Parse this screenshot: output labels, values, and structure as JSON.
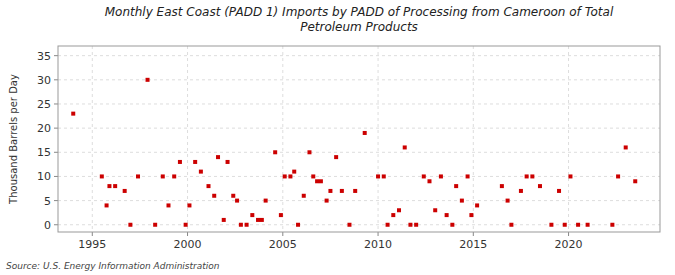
{
  "chart_data": {
    "type": "scatter",
    "title": "Monthly East Coast (PADD 1) Imports by PADD of Processing from Cameroon of Total\nPetroleum Products",
    "y_label": "Thousand Barrels per Day",
    "annotations": [
      "Source: U.S. Energy Information Administration"
    ],
    "color": "#cc0000",
    "marker": "square",
    "grid": true,
    "xlim": [
      1993.2,
      2024.8
    ],
    "ylim": [
      -1.5,
      37
    ],
    "xticks": [
      1995,
      2000,
      2005,
      2010,
      2015,
      2020
    ],
    "yticks": [
      0,
      5,
      10,
      15,
      20,
      25,
      30,
      35
    ],
    "x": [
      1994.0,
      1995.5,
      1995.75,
      1995.9,
      1996.2,
      1996.7,
      1997.0,
      1997.4,
      1997.9,
      1998.3,
      1998.7,
      1999.0,
      1999.3,
      1999.6,
      1999.9,
      2000.1,
      2000.4,
      2000.7,
      2001.1,
      2001.4,
      2001.6,
      2001.9,
      2002.1,
      2002.4,
      2002.6,
      2002.8,
      2003.1,
      2003.4,
      2003.7,
      2003.9,
      2004.1,
      2004.6,
      2004.9,
      2005.1,
      2005.4,
      2005.6,
      2005.8,
      2006.1,
      2006.4,
      2006.6,
      2006.8,
      2007.0,
      2007.3,
      2007.5,
      2007.8,
      2008.1,
      2008.5,
      2008.8,
      2009.3,
      2010.0,
      2010.3,
      2010.5,
      2010.8,
      2011.1,
      2011.4,
      2011.7,
      2012.0,
      2012.4,
      2012.7,
      2013.0,
      2013.3,
      2013.6,
      2013.9,
      2014.1,
      2014.4,
      2014.7,
      2014.9,
      2015.2,
      2016.5,
      2016.8,
      2017.0,
      2017.5,
      2017.8,
      2018.1,
      2018.5,
      2019.1,
      2019.5,
      2019.8,
      2020.1,
      2020.5,
      2021.0,
      2022.3,
      2022.6,
      2023.0,
      2023.5
    ],
    "values": [
      23,
      10,
      4,
      8,
      8,
      7,
      0,
      10,
      30,
      0,
      10,
      4,
      10,
      13,
      0,
      4,
      13,
      11,
      8,
      6,
      14,
      1,
      13,
      6,
      5,
      0,
      0,
      2,
      1,
      1,
      5,
      15,
      2,
      10,
      10,
      11,
      0,
      6,
      15,
      10,
      9,
      9,
      5,
      7,
      14,
      7,
      0,
      7,
      19,
      10,
      10,
      0,
      2,
      3,
      16,
      0,
      0,
      10,
      9,
      3,
      10,
      2,
      0,
      8,
      5,
      10,
      2,
      4,
      8,
      5,
      0,
      7,
      10,
      10,
      8,
      0,
      7,
      0,
      10,
      0,
      0,
      0,
      10,
      16,
      9
    ]
  }
}
